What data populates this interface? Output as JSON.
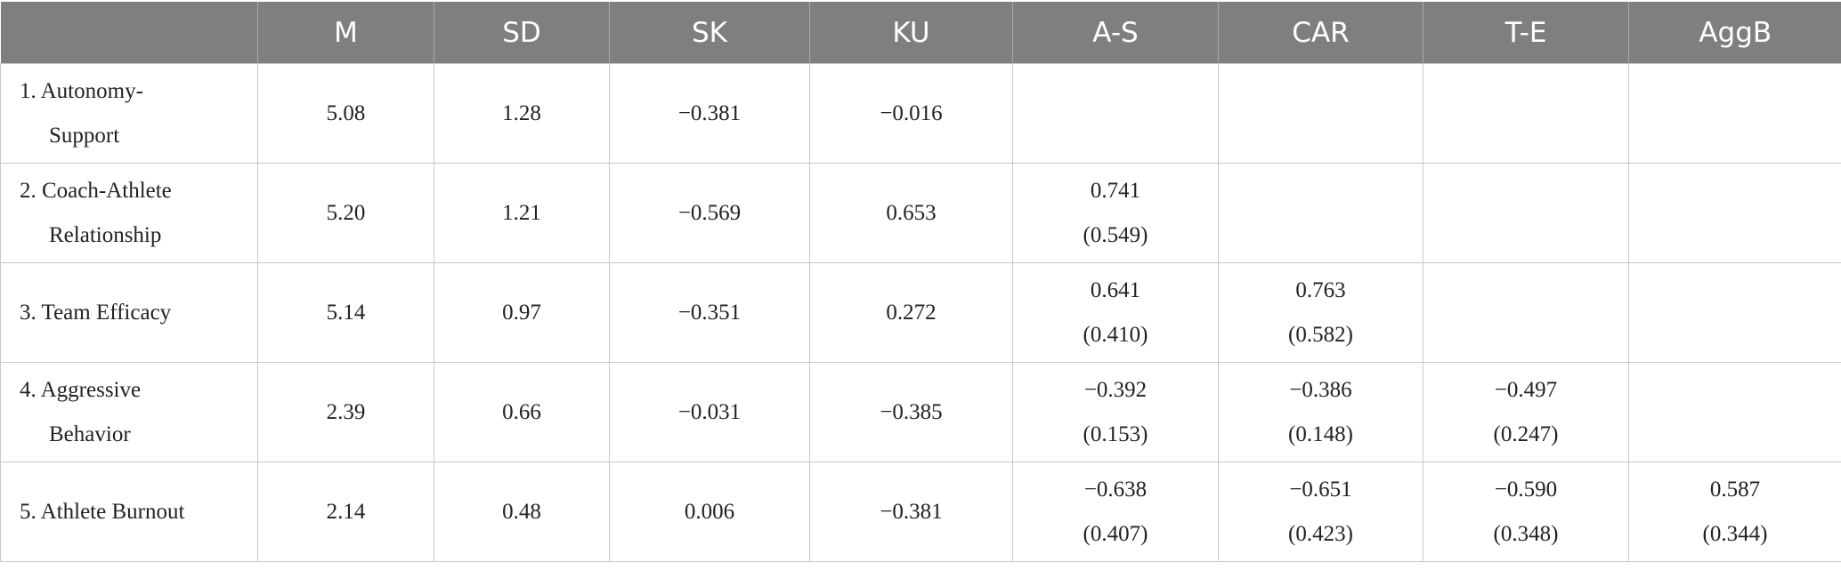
{
  "table": {
    "headers": [
      "",
      "M",
      "SD",
      "SK",
      "KU",
      "A-S",
      "CAR",
      "T-E",
      "AggB"
    ],
    "rows": [
      {
        "label_line1": "1. Autonomy-",
        "label_line2": "Support",
        "M": "5.08",
        "SD": "1.28",
        "SK": "−0.381",
        "KU": "−0.016",
        "AS": [
          "",
          ""
        ],
        "CAR": [
          "",
          ""
        ],
        "TE": [
          "",
          ""
        ],
        "AggB": [
          "",
          ""
        ]
      },
      {
        "label_line1": "2. Coach-Athlete",
        "label_line2": "Relationship",
        "M": "5.20",
        "SD": "1.21",
        "SK": "−0.569",
        "KU": "0.653",
        "AS": [
          "0.741",
          "(0.549)"
        ],
        "CAR": [
          "",
          ""
        ],
        "TE": [
          "",
          ""
        ],
        "AggB": [
          "",
          ""
        ]
      },
      {
        "label_line1": "3. Team Efficacy",
        "label_line2": "",
        "M": "5.14",
        "SD": "0.97",
        "SK": "−0.351",
        "KU": "0.272",
        "AS": [
          "0.641",
          "(0.410)"
        ],
        "CAR": [
          "0.763",
          "(0.582)"
        ],
        "TE": [
          "",
          ""
        ],
        "AggB": [
          "",
          ""
        ]
      },
      {
        "label_line1": "4. Aggressive",
        "label_line2": "Behavior",
        "M": "2.39",
        "SD": "0.66",
        "SK": "−0.031",
        "KU": "−0.385",
        "AS": [
          "−0.392",
          "(0.153)"
        ],
        "CAR": [
          "−0.386",
          "(0.148)"
        ],
        "TE": [
          "−0.497",
          "(0.247)"
        ],
        "AggB": [
          "",
          ""
        ]
      },
      {
        "label_line1": "5. Athlete Burnout",
        "label_line2": "",
        "M": "2.14",
        "SD": "0.48",
        "SK": "0.006",
        "KU": "−0.381",
        "AS": [
          "−0.638",
          "(0.407)"
        ],
        "CAR": [
          "−0.651",
          "(0.423)"
        ],
        "TE": [
          "−0.590",
          "(0.348)"
        ],
        "AggB": [
          "0.587",
          "(0.344)"
        ]
      }
    ]
  }
}
